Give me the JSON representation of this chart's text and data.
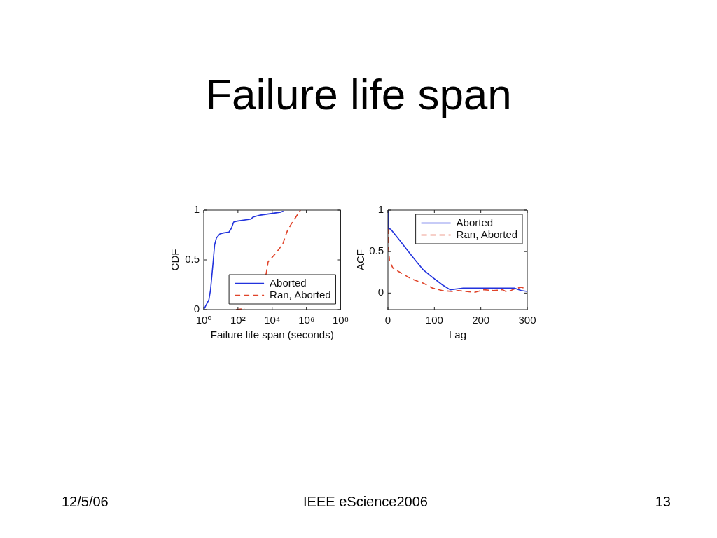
{
  "chart_data": [
    {
      "type": "line",
      "title": "Failure life span",
      "xlabel": "Failure life span (seconds)",
      "ylabel": "CDF",
      "log": "x",
      "xlim": [
        1,
        100000000
      ],
      "xticks": [
        {
          "value": 1,
          "label": "10⁰"
        },
        {
          "value": 100,
          "label": "10²"
        },
        {
          "value": 10000,
          "label": "10⁴"
        },
        {
          "value": 1000000,
          "label": "10⁶"
        },
        {
          "value": 100000000,
          "label": "10⁸"
        }
      ],
      "ylim": [
        0,
        1
      ],
      "yticks": [
        0,
        0.5,
        1
      ],
      "legend": "bottom right",
      "series": [
        {
          "name": "Aborted",
          "color": "#2233dd",
          "line_style": "solid",
          "x": [
            1,
            2,
            2.5,
            3.5,
            4.3,
            5.5,
            8.7,
            14,
            30,
            42,
            56,
            90,
            580,
            740,
            2000,
            32000,
            45000
          ],
          "values": [
            0,
            0.1,
            0.2,
            0.47,
            0.65,
            0.72,
            0.76,
            0.77,
            0.78,
            0.82,
            0.88,
            0.89,
            0.91,
            0.93,
            0.95,
            0.98,
            0.99
          ]
        },
        {
          "name": "Ran, Aborted",
          "color": "#e0442a",
          "line_style": "dashed",
          "x": [
            76,
            260,
            1000,
            4300,
            5000,
            5800,
            9300,
            15000,
            28000,
            44000,
            59000,
            81000,
            130000,
            240000,
            450000
          ],
          "values": [
            0,
            0.01,
            null,
            0.35,
            0.41,
            0.48,
            0.52,
            0.56,
            0.62,
            0.67,
            0.74,
            0.8,
            0.86,
            0.93,
            1
          ]
        }
      ],
      "annotations": [
        "12/5/06",
        "IEEE eScience2006",
        "13"
      ]
    },
    {
      "type": "line",
      "xlabel": "Lag",
      "ylabel": "ACF",
      "xlim": [
        0,
        300
      ],
      "xticks": [
        0,
        100,
        200,
        300
      ],
      "ylim": [
        -0.2,
        1
      ],
      "yticks": [
        0,
        0.5,
        1
      ],
      "legend": "top right",
      "series": [
        {
          "name": "Aborted",
          "color": "#2233dd",
          "line_style": "solid",
          "x": [
            0,
            1,
            6,
            26,
            51,
            76,
            96,
            117,
            134,
            162,
            202,
            237,
            272,
            287,
            300
          ],
          "values": [
            1,
            0.78,
            0.77,
            0.63,
            0.45,
            0.28,
            0.19,
            0.1,
            0.04,
            0.06,
            0.06,
            0.06,
            0.06,
            0.03,
            0.02
          ]
        },
        {
          "name": "Ran, Aborted",
          "color": "#e0442a",
          "line_style": "dashed",
          "x": [
            0,
            1,
            3.5,
            11,
            26,
            51,
            76,
            96,
            117,
            137,
            152,
            167,
            187,
            207,
            227,
            247,
            257,
            272,
            287,
            300
          ],
          "values": [
            1,
            0.55,
            0.38,
            0.3,
            0.25,
            0.17,
            0.12,
            0.06,
            0.03,
            0.02,
            0.03,
            0.02,
            0.01,
            0.04,
            0.03,
            0.04,
            0.01,
            0.05,
            0.07,
            0.05
          ]
        }
      ]
    }
  ]
}
